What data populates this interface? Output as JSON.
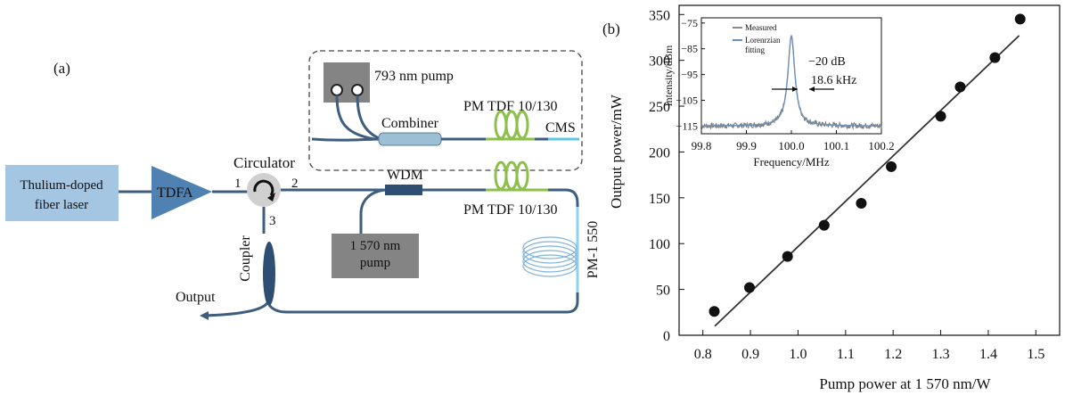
{
  "panel_a": {
    "label": "(a)",
    "laser": "Thulium-doped fiber laser",
    "tdfa": "TDFA",
    "circulator": "Circulator",
    "port1": "1",
    "port2": "2",
    "port3": "3",
    "pump793": "793 nm pump",
    "combiner": "Combiner",
    "tdf_top": "PM TDF 10/130",
    "cms": "CMS",
    "wdm": "WDM",
    "tdf_mid": "PM TDF 10/130",
    "pump1570": "1 570 nm pump",
    "pm1550": "PM-1 550",
    "coupler": "Coupler",
    "output": "Output"
  },
  "panel_b": {
    "label": "(b)"
  },
  "chart_data": [
    {
      "type": "scatter",
      "xlabel": "Pump power at 1 570 nm/W",
      "ylabel": "Output power/mW",
      "xlim": [
        0.75,
        1.55
      ],
      "ylim": [
        0,
        360
      ],
      "xticks": [
        "0.8",
        "0.9",
        "1.0",
        "1.1",
        "1.2",
        "1.3",
        "1.4",
        "1.5"
      ],
      "yticks": [
        "0",
        "50",
        "100",
        "150",
        "200",
        "250",
        "300",
        "350"
      ],
      "points": [
        {
          "x": 0.824,
          "y": 26
        },
        {
          "x": 0.898,
          "y": 52
        },
        {
          "x": 0.978,
          "y": 86
        },
        {
          "x": 1.055,
          "y": 120
        },
        {
          "x": 1.133,
          "y": 144
        },
        {
          "x": 1.196,
          "y": 184
        },
        {
          "x": 1.3,
          "y": 239
        },
        {
          "x": 1.341,
          "y": 271
        },
        {
          "x": 1.414,
          "y": 303
        },
        {
          "x": 1.467,
          "y": 345
        }
      ],
      "fit_line": [
        {
          "x": 0.825,
          "y": 10
        },
        {
          "x": 1.465,
          "y": 327
        }
      ],
      "grid": false
    },
    {
      "type": "line",
      "xlabel": "Frequency/MHz",
      "ylabel": "Intensity/dBm",
      "xlim": [
        99.8,
        100.2
      ],
      "ylim": [
        -118,
        -73
      ],
      "xticks": [
        "99.8",
        "99.9",
        "100.0",
        "100.1",
        "100.2"
      ],
      "yticks": [
        "−75",
        "−85",
        "−95",
        "−105",
        "−115"
      ],
      "legend": [
        "Measured",
        "Lorenrzian fitting"
      ],
      "annotation": [
        "−20 dB",
        "18.6 kHz"
      ],
      "peak": {
        "x": 100.0,
        "y": -80
      },
      "baseline": -115
    }
  ]
}
